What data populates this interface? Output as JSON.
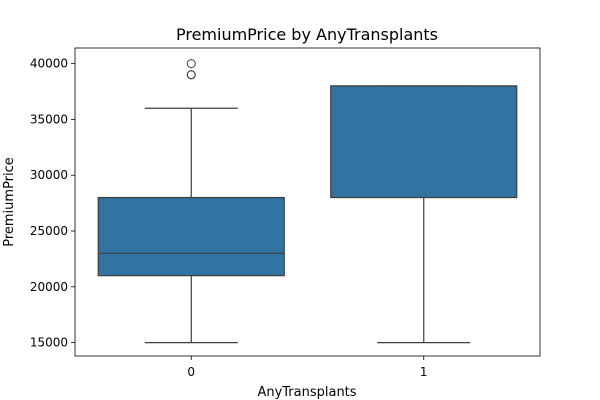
{
  "chart_data": {
    "type": "box",
    "title": "PremiumPrice by AnyTransplants",
    "xlabel": "AnyTransplants",
    "ylabel": "PremiumPrice",
    "categories": [
      "0",
      "1"
    ],
    "ylim": [
      13800,
      41400
    ],
    "yticks": [
      15000,
      20000,
      25000,
      30000,
      35000,
      40000
    ],
    "grid": false,
    "box_color": "#3274a1",
    "line_color": "#3d3d3d",
    "boxes": [
      {
        "category": "0",
        "whisker_low": 15000,
        "q1": 21000,
        "median": 23000,
        "q3": 28000,
        "whisker_high": 36000,
        "outliers": [
          39000,
          39000,
          40000
        ]
      },
      {
        "category": "1",
        "whisker_low": 15000,
        "q1": 28000,
        "median": 38000,
        "q3": 38000,
        "whisker_high": 38000,
        "outliers": []
      }
    ]
  }
}
